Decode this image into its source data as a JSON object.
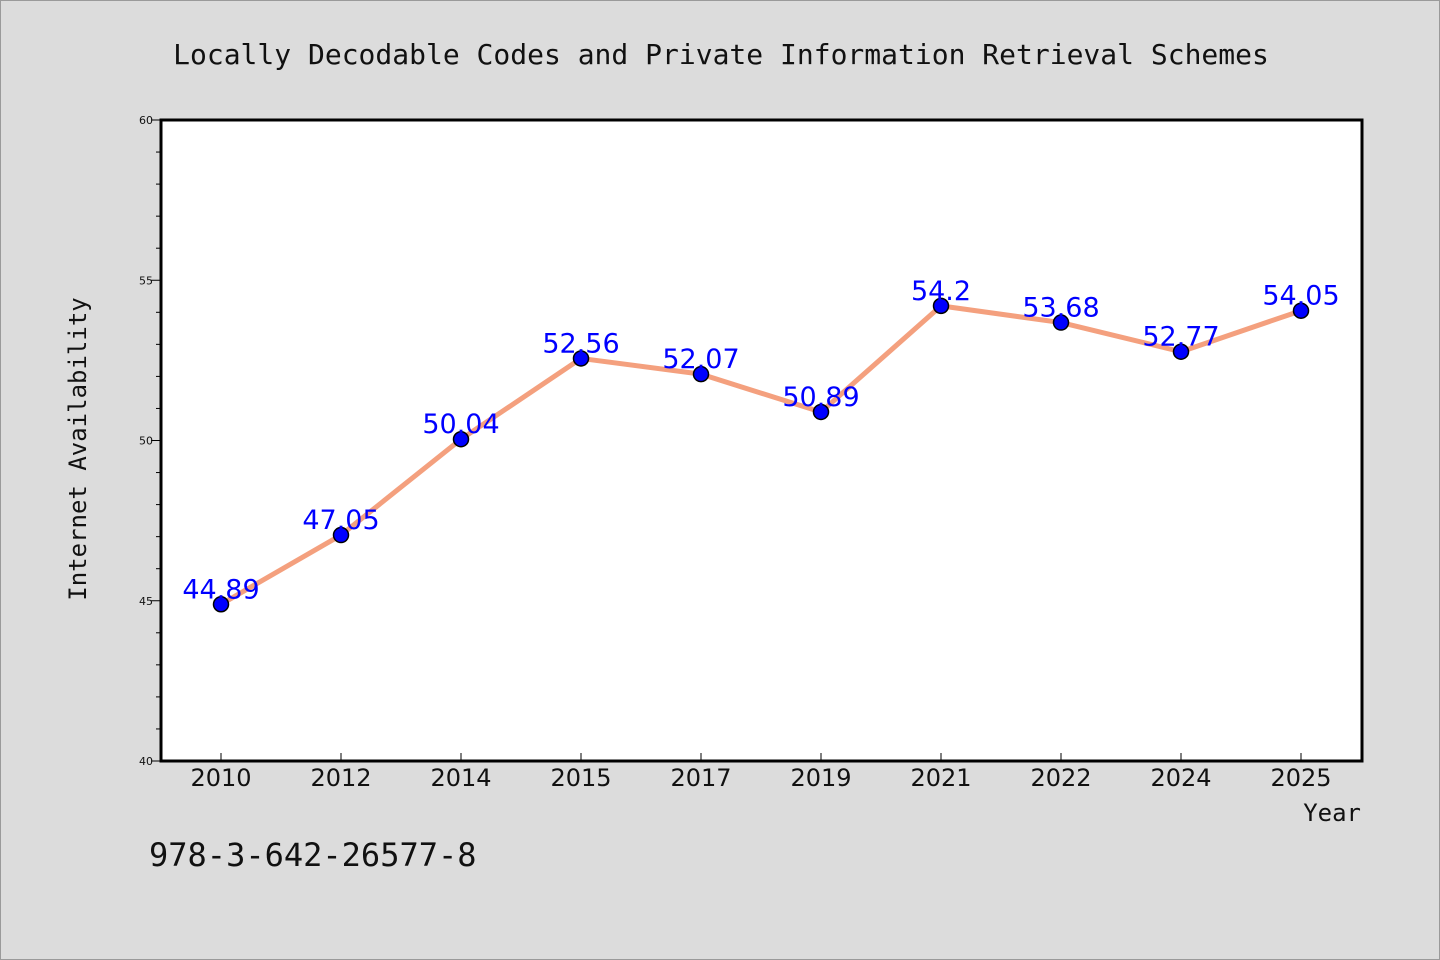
{
  "chart_data": {
    "type": "line",
    "title": "Locally Decodable Codes and Private Information Retrieval Schemes",
    "xlabel": "Year",
    "ylabel": "Internet Availability",
    "categories": [
      "2010",
      "2012",
      "2014",
      "2015",
      "2017",
      "2019",
      "2021",
      "2022",
      "2024",
      "2025"
    ],
    "series": [
      {
        "values": [
          44.89,
          47.05,
          50.04,
          52.56,
          52.07,
          50.89,
          54.2,
          53.68,
          52.77,
          54.05
        ],
        "labels": [
          "44.89",
          "47.05",
          "50.04",
          "52.56",
          "52.07",
          "50.89",
          "54.2",
          "53.68",
          "52.77",
          "54.05"
        ]
      }
    ],
    "ylim": [
      40,
      60
    ],
    "yticks": [
      40,
      45,
      50,
      55,
      60
    ],
    "grid": false,
    "colors": {
      "line": "#f4a07e",
      "marker": "#0000ff",
      "label": "#0000ff",
      "background": "#dcdcdc",
      "plot_background": "#ffffff"
    }
  },
  "footer_text": "978-3-642-26577-8"
}
